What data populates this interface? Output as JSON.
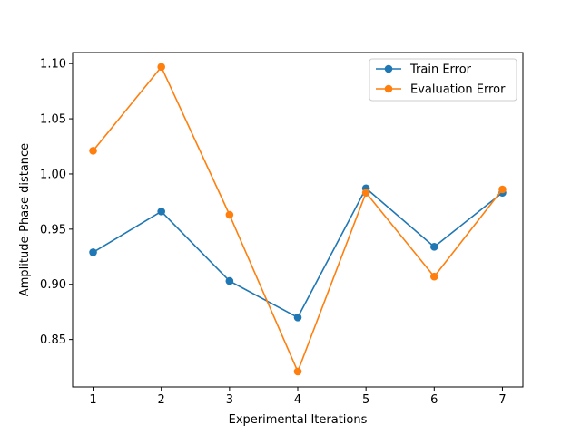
{
  "chart_data": {
    "type": "line",
    "title": "",
    "xlabel": "Experimental Iterations",
    "ylabel": "Amplitude-Phase distance",
    "x": [
      1,
      2,
      3,
      4,
      5,
      6,
      7
    ],
    "x_tick_labels": [
      "1",
      "2",
      "3",
      "4",
      "5",
      "6",
      "7"
    ],
    "xlim": [
      0.7,
      7.3
    ],
    "ylim": [
      0.807,
      1.11
    ],
    "y_ticks": [
      0.85,
      0.9,
      0.95,
      1.0,
      1.05,
      1.1
    ],
    "y_tick_labels": [
      "0.85",
      "0.90",
      "0.95",
      "1.00",
      "1.05",
      "1.10"
    ],
    "grid": false,
    "legend_position": "top-right",
    "series": [
      {
        "name": "Train Error",
        "color": "#1f77b4",
        "marker": "circle",
        "values": [
          0.929,
          0.966,
          0.903,
          0.87,
          0.987,
          0.934,
          0.983
        ]
      },
      {
        "name": "Evaluation Error",
        "color": "#ff7f0e",
        "marker": "circle",
        "values": [
          1.021,
          1.097,
          0.963,
          0.821,
          0.983,
          0.907,
          0.986
        ]
      }
    ]
  }
}
